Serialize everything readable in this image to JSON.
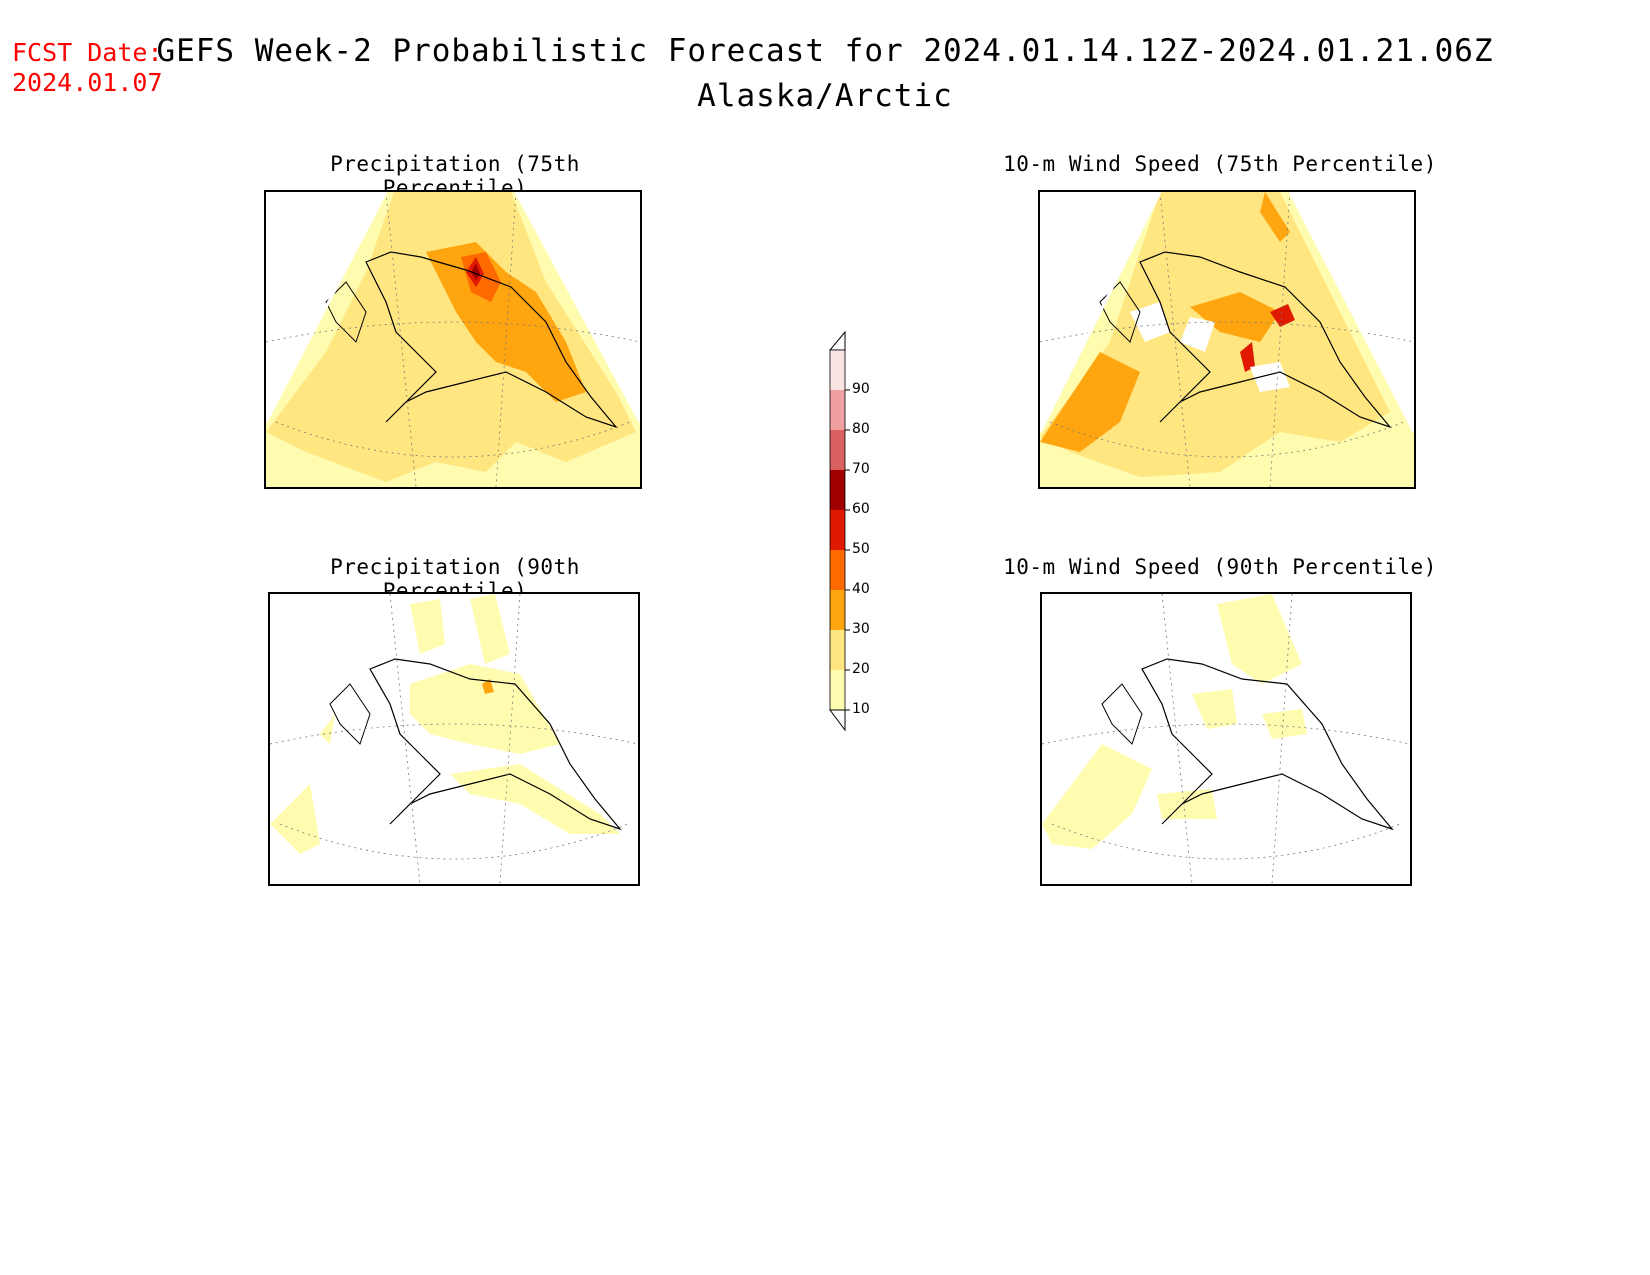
{
  "header": {
    "fcst_label": "FCST Date:",
    "fcst_date": "2024.01.07",
    "title": "GEFS Week-2 Probabilistic Forecast for 2024.01.14.12Z-2024.01.21.06Z",
    "subtitle": "Alaska/Arctic"
  },
  "panels": [
    {
      "title": "Precipitation (75th Percentile)"
    },
    {
      "title": "10-m Wind Speed (75th Percentile)"
    },
    {
      "title": "Precipitation (90th Percentile)"
    },
    {
      "title": "10-m Wind Speed (90th Percentile)"
    }
  ],
  "colorbar": {
    "levels": [
      "10",
      "20",
      "30",
      "40",
      "50",
      "60",
      "70",
      "80",
      "90"
    ],
    "colors": [
      "#fffcb0",
      "#ffe680",
      "#ffa510",
      "#ff6a00",
      "#e01a00",
      "#a00000",
      "#d86060",
      "#f0a0a0",
      "#fde4e4"
    ]
  }
}
